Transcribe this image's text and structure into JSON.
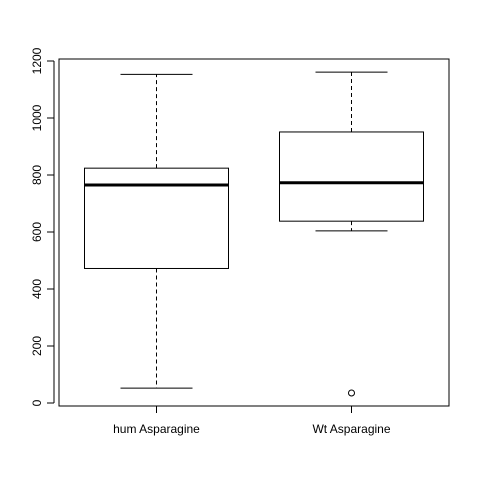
{
  "chart_data": {
    "type": "boxplot",
    "title": "",
    "xlabel": "",
    "ylabel": "",
    "ylim": [
      0,
      1200
    ],
    "yticks": [
      0,
      200,
      400,
      600,
      800,
      1000,
      1200
    ],
    "ytick_labels": [
      "0",
      "200",
      "400",
      "600",
      "800",
      "1000",
      "1200"
    ],
    "grid": false,
    "categories": [
      "hum Asparagine",
      "Wt Asparagine"
    ],
    "boxes": [
      {
        "category": "hum Asparagine",
        "whisker_low": 52,
        "q1": 472,
        "median": 765,
        "q3": 824,
        "whisker_high": 1153,
        "outliers": []
      },
      {
        "category": "Wt Asparagine",
        "whisker_low": 604,
        "q1": 638,
        "median": 773,
        "q3": 951,
        "whisker_high": 1161,
        "outliers": [
          35
        ]
      }
    ]
  }
}
